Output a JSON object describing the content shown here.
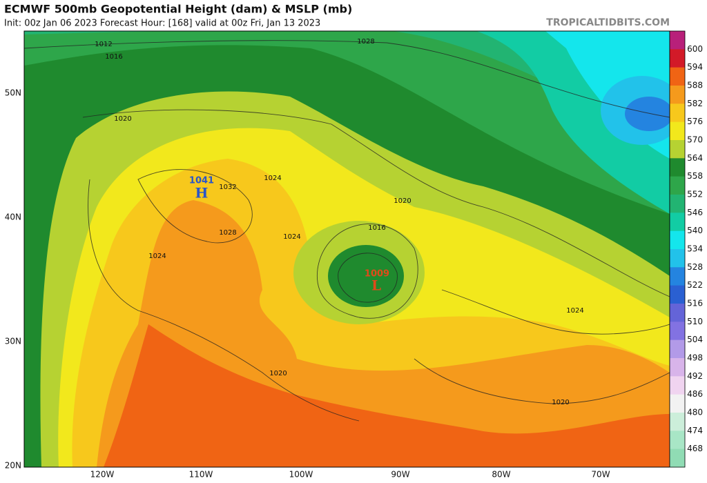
{
  "header": {
    "title": "ECMWF 500mb Geopotential Height (dam) & MSLP (mb)",
    "subtitle": "Init: 00z Jan 06 2023   Forecast Hour: [168]   valid at 00z Fri, Jan 13 2023",
    "watermark": "TROPICALTIDBITS.COM"
  },
  "map": {
    "lat_labels": [
      "50N",
      "40N",
      "30N",
      "20N"
    ],
    "lon_labels": [
      "120W",
      "110W",
      "100W",
      "90W",
      "80W",
      "70W"
    ],
    "isobar_labels": [
      "1012",
      "1016",
      "1028",
      "1020",
      "1024",
      "1032",
      "1020",
      "1016",
      "1024",
      "1028",
      "1024",
      "1024",
      "1020",
      "1020"
    ],
    "high": {
      "pressure": "1041",
      "symbol": "H"
    },
    "low": {
      "pressure": "1009",
      "symbol": "L"
    }
  },
  "colorbar": {
    "colors": [
      "#b8207a",
      "#d21a28",
      "#f06414",
      "#f59a1c",
      "#f7c81c",
      "#f2e81c",
      "#b6d232",
      "#1f8a2e",
      "#2ea64a",
      "#22b472",
      "#12cca4",
      "#14e6ec",
      "#22c2ea",
      "#2484e0",
      "#2a60d2",
      "#6464d8",
      "#8272e2",
      "#b29ae8",
      "#d8b4ea",
      "#f0d4f0",
      "#f2f2f2",
      "#cceeda",
      "#a8e6c6",
      "#90dcb4"
    ],
    "labels": [
      "600",
      "594",
      "588",
      "582",
      "576",
      "570",
      "564",
      "558",
      "552",
      "546",
      "540",
      "534",
      "528",
      "522",
      "516",
      "510",
      "504",
      "498",
      "492",
      "486",
      "480",
      "474",
      "468"
    ]
  }
}
